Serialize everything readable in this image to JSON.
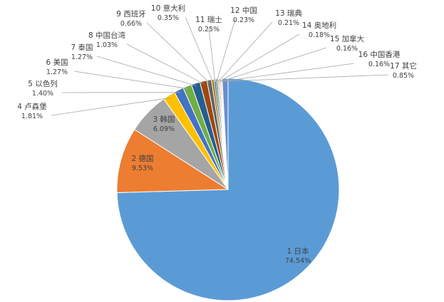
{
  "chart_data": {
    "type": "pie",
    "title": "",
    "start_angle_deg": 0,
    "direction": "clockwise",
    "slices": [
      {
        "label": "1 日本",
        "value": 74.54,
        "pct": "74.54%",
        "color": "#5b9bd5"
      },
      {
        "label": "2 德国",
        "value": 9.53,
        "pct": "9.53%",
        "color": "#ed7d31"
      },
      {
        "label": "3 韩国",
        "value": 6.09,
        "pct": "6.09%",
        "color": "#a5a5a5"
      },
      {
        "label": "4 卢森堡",
        "value": 1.81,
        "pct": "1.81%",
        "color": "#ffc000"
      },
      {
        "label": "5 以色列",
        "value": 1.4,
        "pct": "1.40%",
        "color": "#4472c4"
      },
      {
        "label": "6 美国",
        "value": 1.27,
        "pct": "1.27%",
        "color": "#70ad47"
      },
      {
        "label": "7 泰国",
        "value": 1.27,
        "pct": "1.27%",
        "color": "#255e91"
      },
      {
        "label": "8 中国台湾",
        "value": 1.03,
        "pct": "1.03%",
        "color": "#9e480e"
      },
      {
        "label": "9 西班牙",
        "value": 0.66,
        "pct": "0.66%",
        "color": "#636363"
      },
      {
        "label": "10 意大利",
        "value": 0.35,
        "pct": "0.35%",
        "color": "#997300"
      },
      {
        "label": "11 瑞士",
        "value": 0.25,
        "pct": "0.25%",
        "color": "#264478"
      },
      {
        "label": "12 中国",
        "value": 0.23,
        "pct": "0.23%",
        "color": "#43682b"
      },
      {
        "label": "13 瑞典",
        "value": 0.21,
        "pct": "0.21%",
        "color": "#7cafdd"
      },
      {
        "label": "14 奥地利",
        "value": 0.18,
        "pct": "0.18%",
        "color": "#f1975a"
      },
      {
        "label": "15 加拿大",
        "value": 0.16,
        "pct": "0.16%",
        "color": "#b7b7b7"
      },
      {
        "label": "16 中国香港",
        "value": 0.16,
        "pct": "0.16%",
        "color": "#ffcd33"
      },
      {
        "label": "17 其它",
        "value": 0.85,
        "pct": "0.85%",
        "color": "#698ed0"
      }
    ]
  }
}
